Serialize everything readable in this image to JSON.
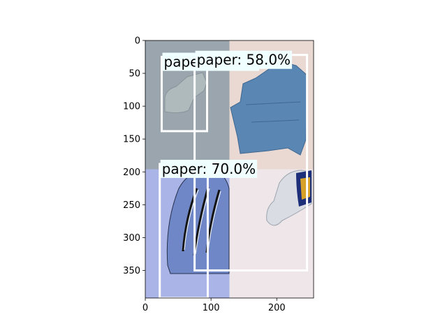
{
  "chart_data": {
    "type": "image-with-detections",
    "image_extent": {
      "x": [
        0,
        256
      ],
      "y": [
        0,
        392
      ]
    },
    "y_axis_inverted": true,
    "x_ticks": [
      0,
      100,
      200
    ],
    "y_ticks": [
      0,
      50,
      100,
      150,
      200,
      250,
      300,
      350
    ],
    "x_tick_labels": [
      "0",
      "100",
      "200"
    ],
    "y_tick_labels": [
      "0",
      "50",
      "100",
      "150",
      "200",
      "250",
      "300",
      "350"
    ],
    "tiles": [
      {
        "name": "glass-bottle-tile",
        "x": [
          0,
          128
        ],
        "y": [
          0,
          196
        ],
        "color": "#9aa5ad"
      },
      {
        "name": "blue-cardboard-tile",
        "x": [
          128,
          256
        ],
        "y": [
          0,
          196
        ],
        "color": "#ead9d3"
      },
      {
        "name": "crushed-can-tile",
        "x": [
          0,
          128
        ],
        "y": [
          196,
          392
        ],
        "color": "#aab4e6"
      },
      {
        "name": "plastic-bottle-tile",
        "x": [
          128,
          256
        ],
        "y": [
          196,
          392
        ],
        "color": "#efe6ea"
      }
    ],
    "detections": [
      {
        "label": "paper: 72.0%",
        "box": {
          "x0": 25,
          "y0": 25,
          "x1": 94,
          "y1": 138
        }
      },
      {
        "label": "paper: 70.0%",
        "box": {
          "x0": 22,
          "y0": 188,
          "x1": 95,
          "y1": 392
        }
      },
      {
        "label": "paper: 58.0%",
        "box": {
          "x0": 75,
          "y0": 22,
          "x1": 246,
          "y1": 350
        }
      }
    ],
    "box_color": "#ffffff",
    "label_bg_color": "#f0ffff"
  }
}
